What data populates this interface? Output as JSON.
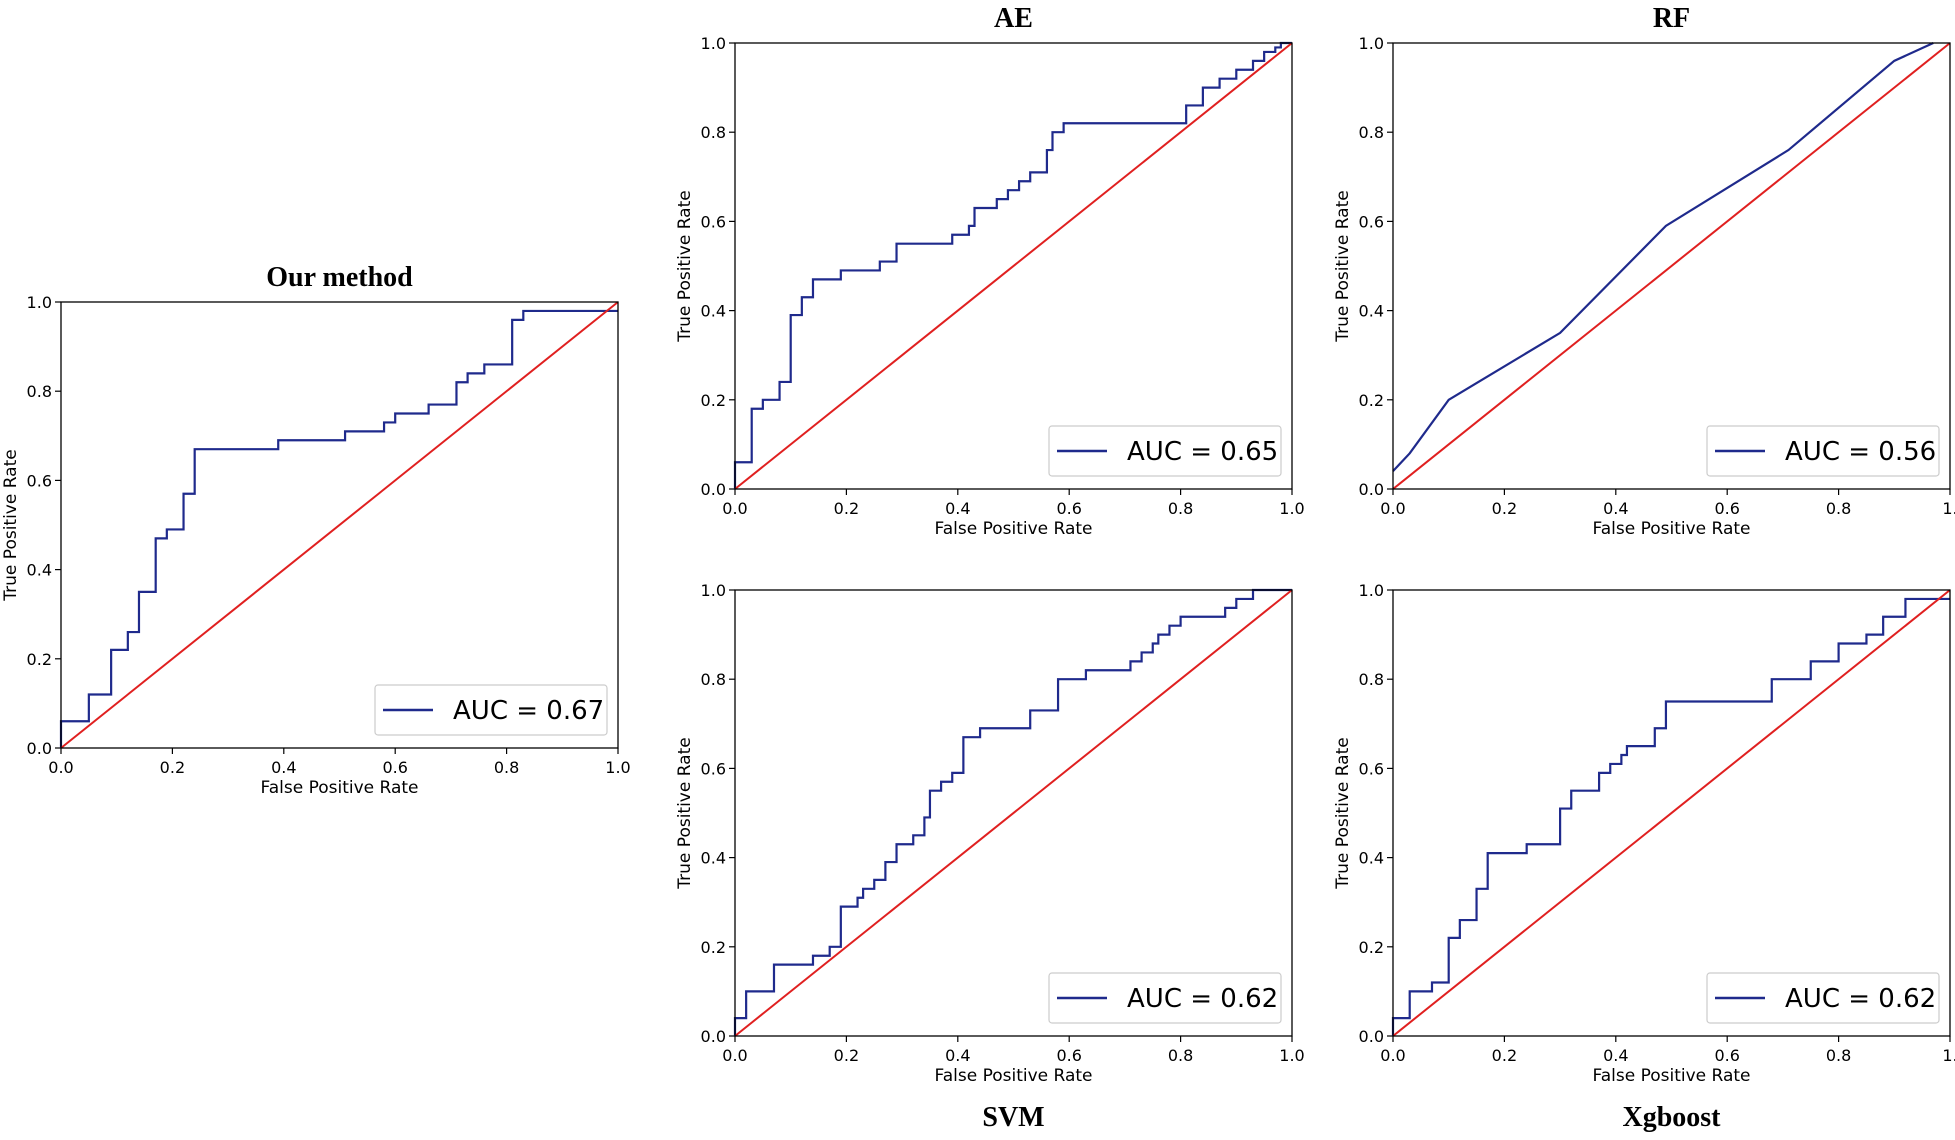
{
  "figure": {
    "background": "#ffffff"
  },
  "chart_data": [
    {
      "id": "our-method",
      "type": "line",
      "title": "Our method",
      "title_position": "top",
      "xlabel": "False Positive Rate",
      "ylabel": "True Positive Rate",
      "xlim": [
        0,
        1
      ],
      "ylim": [
        0,
        1
      ],
      "xticks": [
        "0.0",
        "0.2",
        "0.4",
        "0.6",
        "0.8",
        "1.0"
      ],
      "yticks": [
        "0.0",
        "0.2",
        "0.4",
        "0.6",
        "0.8",
        "1.0"
      ],
      "legend": {
        "label": "AUC = 0.67",
        "placement": "lower-right"
      },
      "series": [
        {
          "name": "ROC",
          "color": "#1f2a8c",
          "x": [
            0,
            0,
            0.05,
            0.05,
            0.09,
            0.09,
            0.12,
            0.12,
            0.14,
            0.14,
            0.17,
            0.17,
            0.19,
            0.19,
            0.22,
            0.22,
            0.24,
            0.24,
            0.39,
            0.39,
            0.51,
            0.51,
            0.58,
            0.58,
            0.6,
            0.6,
            0.66,
            0.66,
            0.71,
            0.71,
            0.73,
            0.73,
            0.76,
            0.76,
            0.81,
            0.81,
            0.83,
            0.83,
            1.0
          ],
          "y": [
            0,
            0.06,
            0.06,
            0.12,
            0.12,
            0.22,
            0.22,
            0.26,
            0.26,
            0.35,
            0.35,
            0.47,
            0.47,
            0.49,
            0.49,
            0.57,
            0.57,
            0.67,
            0.67,
            0.69,
            0.69,
            0.71,
            0.71,
            0.73,
            0.73,
            0.75,
            0.75,
            0.77,
            0.77,
            0.82,
            0.82,
            0.84,
            0.84,
            0.86,
            0.86,
            0.96,
            0.96,
            0.98,
            0.98
          ]
        },
        {
          "name": "chance",
          "color": "#e02020",
          "x": [
            0,
            1
          ],
          "y": [
            0,
            1
          ]
        }
      ]
    },
    {
      "id": "ae",
      "type": "line",
      "title": "AE",
      "title_position": "top",
      "xlabel": "False Positive Rate",
      "ylabel": "True Positive Rate",
      "xlim": [
        0,
        1
      ],
      "ylim": [
        0,
        1
      ],
      "xticks": [
        "0.0",
        "0.2",
        "0.4",
        "0.6",
        "0.8",
        "1.0"
      ],
      "yticks": [
        "0.0",
        "0.2",
        "0.4",
        "0.6",
        "0.8",
        "1.0"
      ],
      "legend": {
        "label": "AUC = 0.65",
        "placement": "lower-right"
      },
      "series": [
        {
          "name": "ROC",
          "color": "#1f2a8c",
          "x": [
            0,
            0,
            0.03,
            0.03,
            0.05,
            0.05,
            0.08,
            0.08,
            0.1,
            0.1,
            0.12,
            0.12,
            0.14,
            0.14,
            0.19,
            0.19,
            0.26,
            0.26,
            0.29,
            0.29,
            0.39,
            0.39,
            0.42,
            0.42,
            0.43,
            0.43,
            0.47,
            0.47,
            0.49,
            0.49,
            0.51,
            0.51,
            0.53,
            0.53,
            0.56,
            0.56,
            0.57,
            0.57,
            0.59,
            0.59,
            0.71,
            0.71,
            0.81,
            0.81,
            0.84,
            0.84,
            0.87,
            0.87,
            0.9,
            0.9,
            0.93,
            0.93,
            0.95,
            0.95,
            0.97,
            0.97,
            0.98,
            0.98,
            1.0
          ],
          "y": [
            0,
            0.06,
            0.06,
            0.18,
            0.18,
            0.2,
            0.2,
            0.24,
            0.24,
            0.39,
            0.39,
            0.43,
            0.43,
            0.47,
            0.47,
            0.49,
            0.49,
            0.51,
            0.51,
            0.55,
            0.55,
            0.57,
            0.57,
            0.59,
            0.59,
            0.63,
            0.63,
            0.65,
            0.65,
            0.67,
            0.67,
            0.69,
            0.69,
            0.71,
            0.71,
            0.76,
            0.76,
            0.8,
            0.8,
            0.82,
            0.82,
            0.82,
            0.82,
            0.86,
            0.86,
            0.9,
            0.9,
            0.92,
            0.92,
            0.94,
            0.94,
            0.96,
            0.96,
            0.98,
            0.98,
            0.99,
            0.99,
            1.0,
            1.0
          ]
        },
        {
          "name": "chance",
          "color": "#e02020",
          "x": [
            0,
            1
          ],
          "y": [
            0,
            1
          ]
        }
      ]
    },
    {
      "id": "rf",
      "type": "line",
      "title": "RF",
      "title_position": "top",
      "xlabel": "False Positive Rate",
      "ylabel": "True Positive Rate",
      "xlim": [
        0,
        1
      ],
      "ylim": [
        0,
        1
      ],
      "xticks": [
        "0.0",
        "0.2",
        "0.4",
        "0.6",
        "0.8",
        "1."
      ],
      "yticks": [
        "0.0",
        "0.2",
        "0.4",
        "0.6",
        "0.8",
        "1.0"
      ],
      "legend": {
        "label": "AUC = 0.56",
        "placement": "lower-right"
      },
      "series": [
        {
          "name": "ROC",
          "color": "#1f2a8c",
          "x": [
            0,
            0.03,
            0.1,
            0.3,
            0.49,
            0.71,
            0.9,
            0.97
          ],
          "y": [
            0.04,
            0.08,
            0.2,
            0.35,
            0.59,
            0.76,
            0.96,
            1.0
          ]
        },
        {
          "name": "chance",
          "color": "#e02020",
          "x": [
            0,
            1
          ],
          "y": [
            0,
            1
          ]
        }
      ]
    },
    {
      "id": "svm",
      "type": "line",
      "title": "SVM",
      "title_position": "bottom",
      "xlabel": "False Positive Rate",
      "ylabel": "True Positive Rate",
      "xlim": [
        0,
        1
      ],
      "ylim": [
        0,
        1
      ],
      "xticks": [
        "0.0",
        "0.2",
        "0.4",
        "0.6",
        "0.8",
        "1.0"
      ],
      "yticks": [
        "0.0",
        "0.2",
        "0.4",
        "0.6",
        "0.8",
        "1.0"
      ],
      "legend": {
        "label": "AUC = 0.62",
        "placement": "lower-right"
      },
      "series": [
        {
          "name": "ROC",
          "color": "#1f2a8c",
          "x": [
            0,
            0,
            0.02,
            0.02,
            0.07,
            0.07,
            0.14,
            0.14,
            0.17,
            0.17,
            0.19,
            0.19,
            0.22,
            0.22,
            0.23,
            0.23,
            0.25,
            0.25,
            0.27,
            0.27,
            0.29,
            0.29,
            0.32,
            0.32,
            0.34,
            0.34,
            0.35,
            0.35,
            0.37,
            0.37,
            0.39,
            0.39,
            0.41,
            0.41,
            0.44,
            0.44,
            0.53,
            0.53,
            0.58,
            0.58,
            0.63,
            0.63,
            0.71,
            0.71,
            0.73,
            0.73,
            0.75,
            0.75,
            0.76,
            0.76,
            0.78,
            0.78,
            0.8,
            0.8,
            0.88,
            0.88,
            0.9,
            0.9,
            0.93,
            0.93,
            0.97,
            0.97,
            1.0
          ],
          "y": [
            0,
            0.04,
            0.04,
            0.1,
            0.1,
            0.16,
            0.16,
            0.18,
            0.18,
            0.2,
            0.2,
            0.29,
            0.29,
            0.31,
            0.31,
            0.33,
            0.33,
            0.35,
            0.35,
            0.39,
            0.39,
            0.43,
            0.43,
            0.45,
            0.45,
            0.49,
            0.49,
            0.55,
            0.55,
            0.57,
            0.57,
            0.59,
            0.59,
            0.67,
            0.67,
            0.69,
            0.69,
            0.73,
            0.73,
            0.8,
            0.8,
            0.82,
            0.82,
            0.84,
            0.84,
            0.86,
            0.86,
            0.88,
            0.88,
            0.9,
            0.9,
            0.92,
            0.92,
            0.94,
            0.94,
            0.96,
            0.96,
            0.98,
            0.98,
            1.0,
            1.0,
            1.0,
            1.0
          ]
        },
        {
          "name": "chance",
          "color": "#e02020",
          "x": [
            0,
            1
          ],
          "y": [
            0,
            1
          ]
        }
      ]
    },
    {
      "id": "xgboost",
      "type": "line",
      "title": "Xgboost",
      "title_position": "bottom",
      "xlabel": "False Positive Rate",
      "ylabel": "True Positive Rate",
      "xlim": [
        0,
        1
      ],
      "ylim": [
        0,
        1
      ],
      "xticks": [
        "0.0",
        "0.2",
        "0.4",
        "0.6",
        "0.8",
        "1."
      ],
      "yticks": [
        "0.0",
        "0.2",
        "0.4",
        "0.6",
        "0.8",
        "1.0"
      ],
      "legend": {
        "label": "AUC = 0.62",
        "placement": "lower-right"
      },
      "series": [
        {
          "name": "ROC",
          "color": "#1f2a8c",
          "x": [
            0,
            0,
            0.03,
            0.03,
            0.07,
            0.07,
            0.1,
            0.1,
            0.12,
            0.12,
            0.15,
            0.15,
            0.17,
            0.17,
            0.24,
            0.24,
            0.3,
            0.3,
            0.32,
            0.32,
            0.37,
            0.37,
            0.39,
            0.39,
            0.41,
            0.41,
            0.42,
            0.42,
            0.47,
            0.47,
            0.49,
            0.49,
            0.51,
            0.51,
            0.68,
            0.68,
            0.75,
            0.75,
            0.8,
            0.8,
            0.85,
            0.85,
            0.88,
            0.88,
            0.92,
            0.92,
            0.95,
            0.95,
            1.0
          ],
          "y": [
            0,
            0.04,
            0.04,
            0.1,
            0.1,
            0.12,
            0.12,
            0.22,
            0.22,
            0.26,
            0.26,
            0.33,
            0.33,
            0.41,
            0.41,
            0.43,
            0.43,
            0.51,
            0.51,
            0.55,
            0.55,
            0.59,
            0.59,
            0.61,
            0.61,
            0.63,
            0.63,
            0.65,
            0.65,
            0.69,
            0.69,
            0.75,
            0.75,
            0.75,
            0.75,
            0.8,
            0.8,
            0.84,
            0.84,
            0.88,
            0.88,
            0.9,
            0.9,
            0.94,
            0.94,
            0.98,
            0.98,
            0.98,
            0.98
          ]
        },
        {
          "name": "chance",
          "color": "#e02020",
          "x": [
            0,
            1
          ],
          "y": [
            0,
            1
          ]
        }
      ]
    }
  ]
}
